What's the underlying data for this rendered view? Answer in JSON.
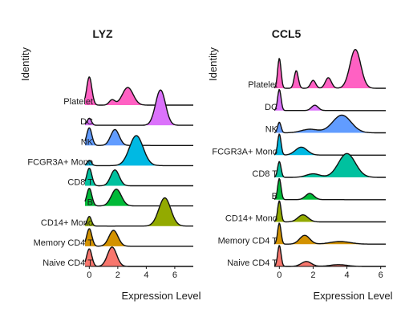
{
  "chart_data": [
    {
      "type": "area",
      "title": "LYZ",
      "xlabel": "Expression Level",
      "ylabel": "Identity",
      "xlim": [
        -0.3,
        7.3
      ],
      "xticks": [
        0,
        2,
        4,
        6
      ],
      "grid": false,
      "legend": "none",
      "categories": [
        "Naive CD4 T",
        "Memory CD4 T",
        "CD14+ Mono",
        "B",
        "CD8 T",
        "FCGR3A+ Mono",
        "NK",
        "DC",
        "Platelet"
      ],
      "series": [
        {
          "name": "Naive CD4 T",
          "color": "#F8766D",
          "peaks": [
            [
              0,
              1.0,
              0.18
            ],
            [
              1.6,
              1.1,
              0.32
            ]
          ]
        },
        {
          "name": "Memory CD4 T",
          "color": "#D39200",
          "peaks": [
            [
              0,
              1.0,
              0.18
            ],
            [
              1.7,
              0.9,
              0.32
            ]
          ]
        },
        {
          "name": "CD14+ Mono",
          "color": "#93AA00",
          "peaks": [
            [
              0,
              0.55,
              0.15
            ],
            [
              5.3,
              1.6,
              0.42
            ]
          ]
        },
        {
          "name": "B",
          "color": "#00BA38",
          "peaks": [
            [
              0,
              1.0,
              0.18
            ],
            [
              1.9,
              0.95,
              0.35
            ]
          ]
        },
        {
          "name": "CD8 T",
          "color": "#00C19F",
          "peaks": [
            [
              0,
              1.0,
              0.18
            ],
            [
              1.8,
              0.9,
              0.3
            ]
          ]
        },
        {
          "name": "FCGR3A+ Mono",
          "color": "#00B9E3",
          "peaks": [
            [
              0,
              0.3,
              0.15
            ],
            [
              3.3,
              1.7,
              0.48
            ]
          ]
        },
        {
          "name": "NK",
          "color": "#619CFF",
          "peaks": [
            [
              0,
              1.0,
              0.18
            ],
            [
              1.8,
              0.9,
              0.3
            ]
          ]
        },
        {
          "name": "DC",
          "color": "#DB72FB",
          "peaks": [
            [
              0,
              0.4,
              0.15
            ],
            [
              5.0,
              2.0,
              0.35
            ]
          ]
        },
        {
          "name": "Platelet",
          "color": "#FF61C3",
          "peaks": [
            [
              0,
              1.6,
              0.18
            ],
            [
              2.7,
              1.0,
              0.38
            ],
            [
              1.6,
              0.3,
              0.2
            ]
          ]
        }
      ]
    },
    {
      "type": "area",
      "title": "CCL5",
      "xlabel": "Expression Level",
      "ylabel": "Identity",
      "xlim": [
        -0.3,
        6.3
      ],
      "xticks": [
        0,
        2,
        4,
        6
      ],
      "grid": false,
      "legend": "none",
      "categories": [
        "Naive CD4 T",
        "Memory CD4 T",
        "CD14+ Mono",
        "B",
        "CD8 T",
        "FCGR3A+ Mono",
        "NK",
        "DC",
        "Platelet"
      ],
      "series": [
        {
          "name": "Naive CD4 T",
          "color": "#F8766D",
          "peaks": [
            [
              0,
              1.2,
              0.1
            ],
            [
              1.6,
              0.28,
              0.3
            ],
            [
              3.5,
              0.1,
              0.5
            ]
          ]
        },
        {
          "name": "Memory CD4 T",
          "color": "#D39200",
          "peaks": [
            [
              0,
              1.2,
              0.1
            ],
            [
              1.5,
              0.5,
              0.3
            ],
            [
              3.6,
              0.15,
              0.6
            ]
          ]
        },
        {
          "name": "CD14+ Mono",
          "color": "#93AA00",
          "peaks": [
            [
              0,
              1.2,
              0.1
            ],
            [
              1.4,
              0.4,
              0.3
            ]
          ]
        },
        {
          "name": "B",
          "color": "#00BA38",
          "peaks": [
            [
              0,
              1.2,
              0.1
            ],
            [
              1.8,
              0.35,
              0.25
            ]
          ]
        },
        {
          "name": "CD8 T",
          "color": "#00C19F",
          "peaks": [
            [
              0,
              0.9,
              0.1
            ],
            [
              4.0,
              1.35,
              0.5
            ],
            [
              2.0,
              0.2,
              0.4
            ]
          ]
        },
        {
          "name": "FCGR3A+ Mono",
          "color": "#00B9E3",
          "peaks": [
            [
              0,
              1.2,
              0.1
            ],
            [
              1.3,
              0.45,
              0.35
            ]
          ]
        },
        {
          "name": "NK",
          "color": "#619CFF",
          "peaks": [
            [
              0,
              0.6,
              0.1
            ],
            [
              3.7,
              1.0,
              0.55
            ],
            [
              1.8,
              0.2,
              0.5
            ]
          ]
        },
        {
          "name": "DC",
          "color": "#DB72FB",
          "peaks": [
            [
              0,
              1.2,
              0.1
            ],
            [
              2.1,
              0.3,
              0.2
            ]
          ]
        },
        {
          "name": "Platelet",
          "color": "#FF61C3",
          "peaks": [
            [
              0,
              1.7,
              0.1
            ],
            [
              1.0,
              1.0,
              0.12
            ],
            [
              2.0,
              0.45,
              0.15
            ],
            [
              2.9,
              0.6,
              0.18
            ],
            [
              4.5,
              2.2,
              0.32
            ]
          ]
        }
      ]
    }
  ]
}
